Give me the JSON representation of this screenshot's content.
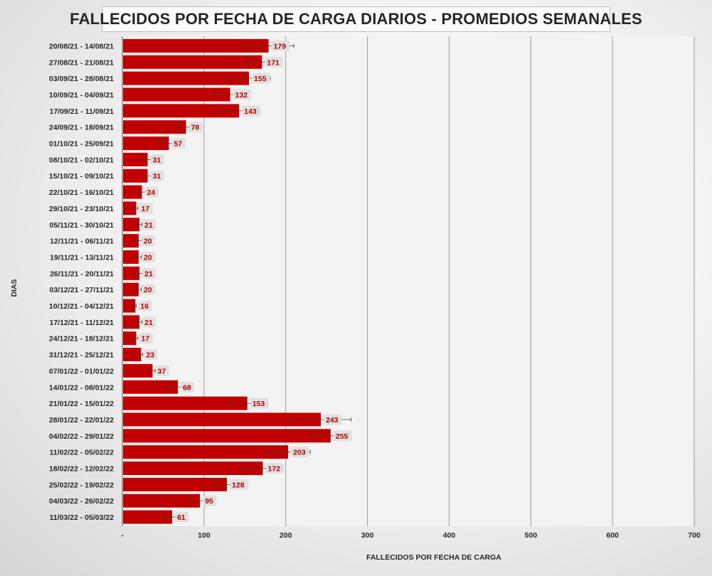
{
  "chart_data": {
    "type": "bar",
    "orientation": "horizontal",
    "title": "FALLECIDOS POR FECHA DE CARGA DIARIOS - PROMEDIOS SEMANALES",
    "xlabel": "FALLECIDOS POR FECHA DE CARGA",
    "ylabel": "DIAS",
    "xlim": [
      0,
      700
    ],
    "x_ticks": [
      "-",
      "100",
      "200",
      "300",
      "400",
      "500",
      "600",
      "700"
    ],
    "grid": "vertical",
    "bar_color": "#c00000",
    "label_color": "#b80000",
    "error_bars": true,
    "categories": [
      "20/08/21 - 14/08/21",
      "27/08/21 - 21/08/21",
      "03/09/21 - 28/08/21",
      "10/09/21 - 04/09/21",
      "17/09/21 - 11/09/21",
      "24/09/21 - 18/09/21",
      "01/10/21 - 25/09/21",
      "08/10/21 - 02/10/21",
      "15/10/21 - 09/10/21",
      "22/10/21 - 16/10/21",
      "29/10/21 - 23/10/21",
      "05/11/21 - 30/10/21",
      "12/11/21 - 06/11/21",
      "19/11/21 - 13/11/21",
      "26/11/21 - 20/11/21",
      "03/12/21 - 27/11/21",
      "10/12/21 - 04/12/21",
      "17/12/21 - 11/12/21",
      "24/12/21 - 18/12/21",
      "31/12/21 - 25/12/21",
      "07/01/22 - 01/01/22",
      "14/01/22 - 08/01/22",
      "21/01/22 - 15/01/22",
      "28/01/22 - 22/01/22",
      "04/02/22 - 29/01/22",
      "11/02/22 - 05/02/22",
      "18/02/22 - 12/02/22",
      "25/02/22 - 19/02/22",
      "04/03/22 - 26/02/22",
      "11/03/22 - 05/03/22"
    ],
    "values": [
      179,
      171,
      155,
      132,
      143,
      78,
      57,
      31,
      31,
      24,
      17,
      21,
      20,
      20,
      21,
      20,
      16,
      21,
      17,
      23,
      37,
      68,
      153,
      243,
      255,
      203,
      172,
      128,
      95,
      61
    ],
    "data_labels": [
      "179",
      "171",
      "155",
      "132",
      "143",
      "78",
      "57",
      "31",
      "31",
      "24",
      "17",
      "21",
      "20",
      "20",
      "21",
      "20",
      "16",
      "21",
      "17",
      "23",
      "37",
      "68",
      "153",
      "243",
      "255",
      "203",
      "172",
      "128",
      "95",
      "61"
    ],
    "error_low": [
      147,
      155,
      128,
      115,
      118,
      68,
      45,
      26,
      25,
      20,
      14,
      17,
      16,
      16,
      16,
      17,
      13,
      18,
      13,
      20,
      33,
      54,
      130,
      203,
      228,
      176,
      148,
      112,
      82,
      52
    ],
    "error_high": [
      210,
      187,
      181,
      147,
      167,
      88,
      68,
      36,
      36,
      28,
      19,
      24,
      24,
      23,
      25,
      23,
      17,
      24,
      19,
      25,
      40,
      79,
      178,
      280,
      278,
      230,
      195,
      143,
      106,
      69
    ]
  }
}
